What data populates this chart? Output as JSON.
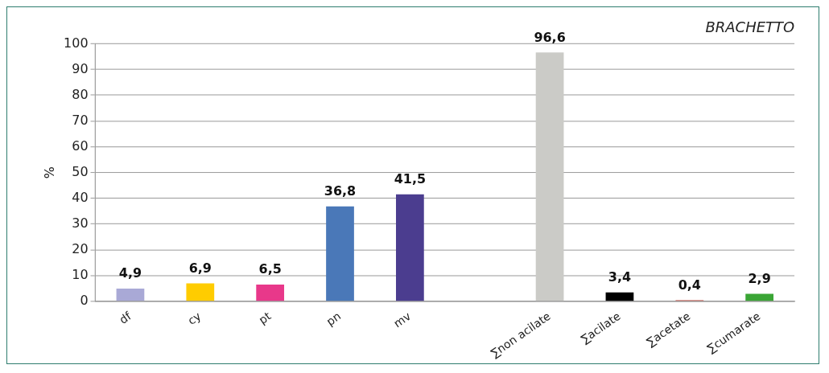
{
  "chart_data": {
    "type": "bar",
    "title": "BRACHETTO",
    "ylabel": "%",
    "categories": [
      "df",
      "cy",
      "pt",
      "pn",
      "mv",
      null,
      "∑non acilate",
      "∑acilate",
      "∑acetate",
      "∑cumarate"
    ],
    "values": [
      4.9,
      6.9,
      6.5,
      36.8,
      41.5,
      null,
      96.6,
      3.4,
      0.4,
      2.9
    ],
    "colors": [
      "#a9a9d6",
      "#ffcc00",
      "#e8388a",
      "#4a78b8",
      "#4b3d8f",
      "#cccccc",
      "#cbcbc7",
      "#000000",
      "#c0392b",
      "#3aa535"
    ],
    "value_labels": [
      "4,9",
      "6,9",
      "6,5",
      "36,8",
      "41,5",
      null,
      "96,6",
      "3,4",
      "0,4",
      "2,9"
    ],
    "ylim": [
      0,
      100
    ],
    "yticks": [
      0,
      10,
      20,
      30,
      40,
      50,
      60,
      70,
      80,
      90,
      100
    ],
    "grid": "y",
    "legend": false
  }
}
